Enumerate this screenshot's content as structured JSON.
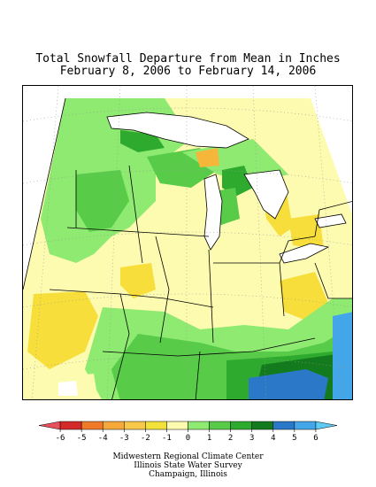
{
  "title": {
    "line1": "Total Snowfall Departure from Mean in Inches",
    "line2": "February 8, 2006 to February 14, 2006"
  },
  "legend": {
    "ticks": [
      "-6",
      "-5",
      "-4",
      "-3",
      "-2",
      "-1",
      "0",
      "1",
      "2",
      "3",
      "4",
      "5",
      "6"
    ],
    "colors": [
      "#e8505a",
      "#d42a2a",
      "#f07a2a",
      "#f6a93a",
      "#f7c84a",
      "#f2e23a",
      "#fdfbb0",
      "#8eea70",
      "#58cc48",
      "#2eab2e",
      "#137a1e",
      "#2b78c8",
      "#43a6e8",
      "#5ecbf5"
    ]
  },
  "map_colors": {
    "zero": "#fdfbb0",
    "light_green": "#8eea70",
    "green": "#58cc48",
    "dark_green": "#2eab2e",
    "darkest_green": "#137a1e",
    "yellow": "#f7de3a",
    "orange": "#f6b63a",
    "blue": "#2b78c8",
    "light_blue": "#43a6e8",
    "water": "#ffffff"
  },
  "credits": {
    "line1": "Midwestern Regional Climate Center",
    "line2": "Illinois State Water Survey",
    "line3": "Champaign, Illinois"
  }
}
